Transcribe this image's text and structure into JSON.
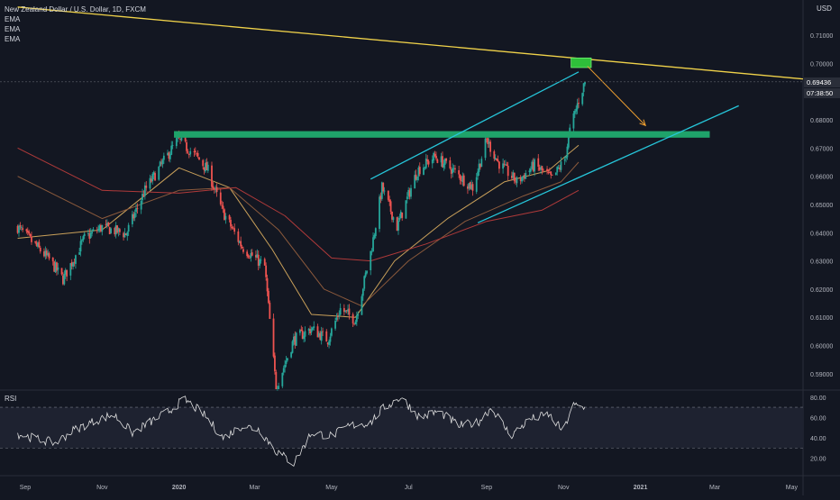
{
  "header": {
    "symbol_title": "New Zealand Dollar / U.S. Dollar, 1D, FXCM",
    "indicators": [
      "EMA",
      "EMA",
      "EMA"
    ],
    "currency": "USD"
  },
  "rsi_panel": {
    "label": "RSI"
  },
  "price_tags": {
    "last_price": "0.69436",
    "countdown": "07:38:50"
  },
  "colors": {
    "background": "#131722",
    "up_candle": "#26a69a",
    "down_candle": "#ef5350",
    "trendline_top": "#f0d24a",
    "channel": "#26c6da",
    "resistance_zone": "#1fa36a",
    "target_box": "#2fbf3a",
    "arrow": "#f0a030",
    "ema_fast": "#c9a05a",
    "ema_mid": "#8c5a3c",
    "ema_slow": "#b03a3a",
    "rsi_line": "#e0e0e0",
    "grid_text": "#b2b5be"
  },
  "chart_data": [
    {
      "type": "candlestick",
      "title": "New Zealand Dollar / U.S. Dollar, 1D, FXCM",
      "y_axis_ticks": [
        "0.71000",
        "0.70000",
        "0.69000",
        "0.68000",
        "0.67000",
        "0.66000",
        "0.65000",
        "0.64000",
        "0.63000",
        "0.62000",
        "0.61000",
        "0.60000",
        "0.59000"
      ],
      "ylim": [
        0.5845,
        0.7225
      ],
      "x_axis_ticks": [
        "Sep",
        "Nov",
        "2020",
        "Mar",
        "May",
        "Jul",
        "Sep",
        "Nov",
        "2021",
        "Mar",
        "May"
      ],
      "close_path": {
        "x": [
          "2019-08-26",
          "2019-09-20",
          "2019-10-01",
          "2019-10-18",
          "2019-11-01",
          "2019-11-20",
          "2019-12-05",
          "2019-12-31",
          "2020-01-15",
          "2020-01-24",
          "2020-02-04",
          "2020-02-20",
          "2020-03-09",
          "2020-03-18",
          "2020-04-01",
          "2020-04-15",
          "2020-04-28",
          "2020-05-08",
          "2020-05-20",
          "2020-06-02",
          "2020-06-10",
          "2020-06-22",
          "2020-07-08",
          "2020-07-22",
          "2020-08-03",
          "2020-08-21",
          "2020-09-01",
          "2020-09-10",
          "2020-09-25",
          "2020-10-09",
          "2020-10-23",
          "2020-11-02",
          "2020-11-06",
          "2020-11-13",
          "2020-11-18"
        ],
        "y": [
          0.642,
          0.6305,
          0.6235,
          0.638,
          0.642,
          0.6395,
          0.655,
          0.673,
          0.667,
          0.662,
          0.648,
          0.635,
          0.628,
          0.585,
          0.602,
          0.606,
          0.602,
          0.613,
          0.609,
          0.635,
          0.656,
          0.642,
          0.662,
          0.667,
          0.663,
          0.656,
          0.673,
          0.665,
          0.658,
          0.664,
          0.659,
          0.666,
          0.676,
          0.687,
          0.6935
        ]
      },
      "series": [
        {
          "name": "EMA",
          "x": [
            "2019-08-26",
            "2019-11-01",
            "2020-01-01",
            "2020-02-10",
            "2020-03-15",
            "2020-04-15",
            "2020-05-20",
            "2020-06-20",
            "2020-08-01",
            "2020-09-15",
            "2020-10-20",
            "2020-11-13"
          ],
          "values": [
            0.638,
            0.641,
            0.663,
            0.656,
            0.634,
            0.611,
            0.61,
            0.63,
            0.645,
            0.658,
            0.662,
            0.671
          ]
        },
        {
          "name": "EMA",
          "x": [
            "2019-08-26",
            "2019-11-01",
            "2020-01-01",
            "2020-02-10",
            "2020-03-20",
            "2020-04-25",
            "2020-05-25",
            "2020-07-01",
            "2020-08-15",
            "2020-09-30",
            "2020-10-30",
            "2020-11-13"
          ],
          "values": [
            0.66,
            0.645,
            0.655,
            0.656,
            0.641,
            0.62,
            0.614,
            0.63,
            0.644,
            0.653,
            0.658,
            0.665
          ]
        },
        {
          "name": "EMA",
          "x": [
            "2019-08-26",
            "2019-11-01",
            "2020-01-01",
            "2020-02-15",
            "2020-03-25",
            "2020-05-01",
            "2020-06-01",
            "2020-07-15",
            "2020-09-01",
            "2020-10-15",
            "2020-11-13"
          ],
          "values": [
            0.67,
            0.655,
            0.654,
            0.656,
            0.646,
            0.631,
            0.63,
            0.636,
            0.644,
            0.648,
            0.655
          ]
        }
      ],
      "annotations": [
        {
          "kind": "trendline",
          "x": [
            "2019-08-26",
            "2021-05-10"
          ],
          "y": [
            0.72,
            0.6945
          ]
        },
        {
          "kind": "resistance_zone",
          "x": [
            "2019-12-28",
            "2021-02-25"
          ],
          "y": [
            0.674,
            0.676
          ]
        },
        {
          "kind": "channel_upper",
          "x": [
            "2020-06-01",
            "2020-11-13"
          ],
          "y": [
            0.659,
            0.697
          ]
        },
        {
          "kind": "channel_lower",
          "x": [
            "2020-08-25",
            "2021-03-20"
          ],
          "y": [
            0.6435,
            0.685
          ]
        },
        {
          "kind": "target_box",
          "x": [
            "2020-11-07",
            "2020-11-23"
          ],
          "y": [
            0.6995,
            0.701
          ]
        },
        {
          "kind": "arrow",
          "x": [
            "2020-11-20",
            "2021-01-05"
          ],
          "y": [
            0.699,
            0.678
          ]
        }
      ]
    },
    {
      "type": "line",
      "title": "RSI",
      "y_axis_ticks": [
        "80.00",
        "60.00",
        "40.00",
        "20.00"
      ],
      "ylim": [
        10,
        86
      ],
      "bands": [
        30,
        70
      ],
      "x": [
        "2019-08-26",
        "2019-09-10",
        "2019-09-25",
        "2019-10-10",
        "2019-10-25",
        "2019-11-10",
        "2019-11-25",
        "2019-12-10",
        "2019-12-25",
        "2020-01-05",
        "2020-01-20",
        "2020-02-05",
        "2020-02-20",
        "2020-03-05",
        "2020-03-18",
        "2020-04-01",
        "2020-04-15",
        "2020-05-01",
        "2020-05-15",
        "2020-06-01",
        "2020-06-10",
        "2020-06-25",
        "2020-07-10",
        "2020-07-25",
        "2020-08-10",
        "2020-08-25",
        "2020-09-05",
        "2020-09-20",
        "2020-10-05",
        "2020-10-20",
        "2020-11-01",
        "2020-11-08",
        "2020-11-18"
      ],
      "values": [
        44,
        39,
        35,
        48,
        56,
        63,
        45,
        56,
        67,
        78,
        64,
        40,
        52,
        48,
        27,
        15,
        45,
        42,
        52,
        55,
        68,
        80,
        60,
        66,
        52,
        55,
        70,
        42,
        58,
        63,
        46,
        72,
        69
      ]
    }
  ]
}
